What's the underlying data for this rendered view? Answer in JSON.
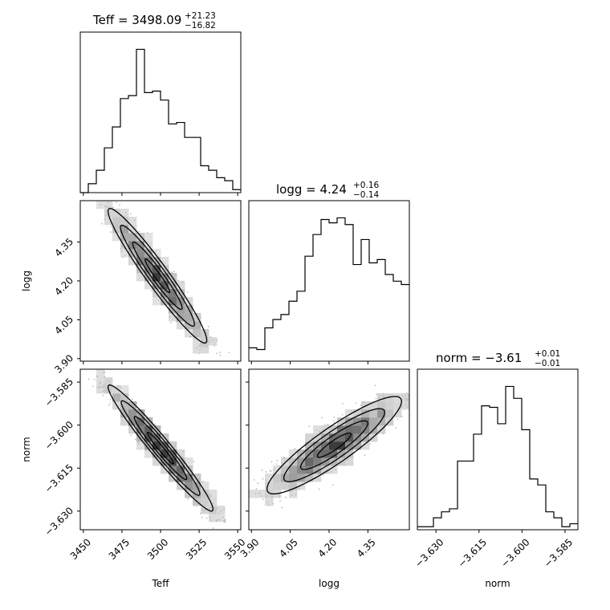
{
  "chart_data": {
    "type": "corner",
    "parameters": [
      "Teff",
      "logg",
      "norm"
    ],
    "titles": [
      {
        "main": "Teff = 3498.09",
        "plus": "+21.23",
        "minus": "−16.82"
      },
      {
        "main": "logg = 4.24",
        "plus": "+0.16",
        "minus": "−0.14"
      },
      {
        "main": "norm = −3.61",
        "plus": "+0.01",
        "minus": "−0.01"
      }
    ],
    "axis_labels": {
      "x": [
        "Teff",
        "logg",
        "norm"
      ],
      "y": [
        "logg",
        "norm"
      ]
    },
    "ranges": {
      "Teff": [
        3448.0,
        3552.0
      ],
      "logg": [
        3.89,
        4.51
      ],
      "norm": [
        -3.6365,
        -3.5805
      ]
    },
    "ticks": {
      "Teff": {
        "values": [
          3450,
          3475,
          3500,
          3525,
          3550
        ],
        "labels": [
          "3450",
          "3475",
          "3500",
          "3525",
          "3550"
        ]
      },
      "logg": {
        "values": [
          3.9,
          4.05,
          4.2,
          4.35
        ],
        "labels": [
          "3.90",
          "4.05",
          "4.20",
          "4.35"
        ]
      },
      "norm": {
        "values": [
          -3.63,
          -3.615,
          -3.6,
          -3.585
        ],
        "labels": [
          "−3.630",
          "−3.615",
          "−3.600",
          "−3.585"
        ]
      }
    },
    "histograms": {
      "Teff": {
        "bins": [
          3448,
          3453.2,
          3458.4,
          3463.6,
          3468.8,
          3474,
          3479.2,
          3484.4,
          3489.6,
          3494.8,
          3500,
          3505.2,
          3510.4,
          3515.6,
          3520.8,
          3526,
          3531.2,
          3536.4,
          3541.6,
          3546.8,
          3552
        ],
        "counts": [
          0,
          6,
          15,
          30,
          44,
          63,
          65,
          96,
          67,
          68,
          62,
          46,
          47,
          37,
          37,
          18,
          15,
          10,
          8,
          2
        ]
      },
      "logg": {
        "bins": [
          3.89,
          3.921,
          3.952,
          3.983,
          4.014,
          4.045,
          4.076,
          4.107,
          4.138,
          4.169,
          4.2,
          4.231,
          4.262,
          4.293,
          4.324,
          4.355,
          4.386,
          4.417,
          4.448,
          4.479,
          4.51
        ],
        "counts": [
          8,
          7,
          20,
          25,
          28,
          36,
          42,
          63,
          76,
          85,
          83,
          86,
          82,
          58,
          73,
          59,
          61,
          52,
          48,
          46
        ]
      },
      "norm": {
        "bins": [
          -3.6365,
          -3.6337,
          -3.6309,
          -3.6281,
          -3.6253,
          -3.6225,
          -3.6197,
          -3.6169,
          -3.6141,
          -3.6113,
          -3.6085,
          -3.6057,
          -3.6029,
          -3.6001,
          -3.5973,
          -3.5945,
          -3.5917,
          -3.5889,
          -3.5861,
          -3.5833,
          -3.5805
        ],
        "counts": [
          2,
          2,
          8,
          12,
          14,
          46,
          46,
          64,
          83,
          82,
          71,
          96,
          88,
          67,
          34,
          30,
          12,
          8,
          2,
          4
        ]
      }
    },
    "joint": {
      "logg_vs_Teff": {
        "mean": [
          3498,
          4.22
        ],
        "sd": [
          16,
          0.13
        ],
        "rho": -0.96
      },
      "norm_vs_Teff": {
        "mean": [
          3500,
          -3.608
        ],
        "sd": [
          17,
          0.011
        ],
        "rho": -0.97
      },
      "norm_vs_logg": {
        "mean": [
          4.22,
          -3.607
        ],
        "sd": [
          0.13,
          0.0085
        ],
        "rho": 0.9
      }
    }
  }
}
